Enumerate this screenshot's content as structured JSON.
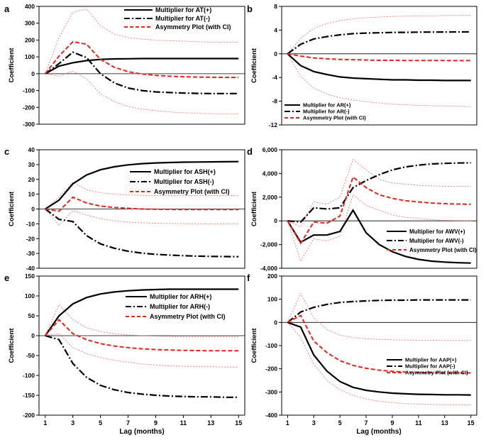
{
  "figure": {
    "xlabel": "Lag (months)"
  },
  "chart_data": [
    {
      "panel_label": "a",
      "type": "line",
      "ylabel": "Coefficient",
      "x": [
        1,
        2,
        3,
        4,
        5,
        6,
        7,
        8,
        9,
        10,
        11,
        12,
        13,
        14,
        15
      ],
      "ylim": [
        -300,
        400
      ],
      "yticks": [
        -300,
        -200,
        -100,
        0,
        100,
        200,
        300,
        400
      ],
      "ytick_labels": [
        "-300",
        "-200",
        "-100",
        "0",
        "100",
        "200",
        "300",
        "400"
      ],
      "xticks": [],
      "xtick_labels": [],
      "legend_position": "top-right",
      "series": [
        {
          "name": "Multiplier for AT(+)",
          "style": "solid",
          "values": [
            0,
            45,
            65,
            78,
            85,
            88,
            89,
            90,
            90,
            90,
            90,
            90,
            90,
            90,
            90
          ]
        },
        {
          "name": "Multiplier for AT(-)",
          "style": "dashdot",
          "values": [
            0,
            60,
            128,
            95,
            0,
            -55,
            -85,
            -100,
            -108,
            -112,
            -115,
            -117,
            -118,
            -118,
            -118
          ]
        },
        {
          "name": "Asymmetry Plot (with CI)",
          "style": "dashed-red",
          "values": [
            0,
            105,
            190,
            175,
            85,
            38,
            12,
            -2,
            -10,
            -15,
            -18,
            -20,
            -21,
            -22,
            -22
          ]
        },
        {
          "name": "CI upper",
          "style": "ci",
          "values": [
            0,
            215,
            365,
            385,
            285,
            235,
            215,
            205,
            200,
            196,
            193,
            190,
            188,
            187,
            186
          ]
        },
        {
          "name": "CI lower",
          "style": "ci",
          "values": [
            0,
            -15,
            15,
            -30,
            -120,
            -165,
            -195,
            -210,
            -220,
            -227,
            -232,
            -235,
            -237,
            -238,
            -238
          ]
        }
      ]
    },
    {
      "panel_label": "b",
      "type": "line",
      "ylabel": "Coefficient",
      "x": [
        1,
        2,
        3,
        4,
        5,
        6,
        7,
        8,
        9,
        10,
        11,
        12,
        13,
        14,
        15
      ],
      "ylim": [
        -12,
        8
      ],
      "yticks": [
        -12,
        -8,
        -4,
        0,
        4,
        8
      ],
      "ytick_labels": [
        "-12",
        "-8",
        "-4",
        "0",
        "4",
        "8"
      ],
      "xticks": [],
      "xtick_labels": [],
      "legend_position": "bottom-left",
      "series": [
        {
          "name": "Multiplier for AR(+)",
          "style": "solid",
          "values": [
            0,
            -2,
            -3,
            -3.5,
            -3.9,
            -4.1,
            -4.2,
            -4.3,
            -4.4,
            -4.4,
            -4.45,
            -4.45,
            -4.5,
            -4.5,
            -4.5
          ]
        },
        {
          "name": "Multiplier for AR(-)",
          "style": "dashdot",
          "values": [
            0,
            1.6,
            2.5,
            2.9,
            3.2,
            3.4,
            3.5,
            3.55,
            3.6,
            3.62,
            3.65,
            3.67,
            3.68,
            3.69,
            3.7
          ]
        },
        {
          "name": "Asymmetry Plot (with CI)",
          "style": "dashed-red",
          "values": [
            0,
            -0.4,
            -0.7,
            -0.85,
            -0.95,
            -1.0,
            -1.05,
            -1.1,
            -1.1,
            -1.12,
            -1.12,
            -1.13,
            -1.14,
            -1.15,
            -1.15
          ]
        },
        {
          "name": "CI upper",
          "style": "ci",
          "values": [
            0,
            2.6,
            4.3,
            5.1,
            5.6,
            5.9,
            6.1,
            6.2,
            6.3,
            6.35,
            6.4,
            6.4,
            6.45,
            6.45,
            6.5
          ]
        },
        {
          "name": "CI lower",
          "style": "ci",
          "values": [
            0,
            -3.8,
            -5.8,
            -6.8,
            -7.4,
            -7.8,
            -8.1,
            -8.3,
            -8.5,
            -8.6,
            -8.7,
            -8.75,
            -8.8,
            -8.85,
            -8.9
          ]
        }
      ]
    },
    {
      "panel_label": "c",
      "type": "line",
      "ylabel": "Coefficient",
      "x": [
        1,
        2,
        3,
        4,
        5,
        6,
        7,
        8,
        9,
        10,
        11,
        12,
        13,
        14,
        15
      ],
      "ylim": [
        -40,
        40
      ],
      "yticks": [
        -40,
        -30,
        -20,
        -10,
        0,
        10,
        20,
        30,
        40
      ],
      "ytick_labels": [
        "-40",
        "-30",
        "-20",
        "-10",
        "0",
        "10",
        "20",
        "30",
        "40"
      ],
      "xticks": [],
      "xtick_labels": [],
      "legend_position": "right",
      "series": [
        {
          "name": "Multiplier for ASH(+)",
          "style": "solid",
          "values": [
            0,
            6,
            17,
            23,
            26.5,
            28.5,
            29.8,
            30.6,
            31.1,
            31.4,
            31.6,
            31.7,
            31.8,
            31.9,
            32
          ]
        },
        {
          "name": "Multiplier for ASH(-)",
          "style": "dashdot",
          "values": [
            0,
            -7,
            -8.5,
            -18,
            -23.5,
            -26.5,
            -28.5,
            -29.8,
            -30.6,
            -31.1,
            -31.5,
            -31.8,
            -32,
            -32.1,
            -32.2
          ]
        },
        {
          "name": "Asymmetry Plot (with CI)",
          "style": "dashed-red",
          "values": [
            0,
            -1.5,
            8,
            4,
            2,
            1,
            0.5,
            0,
            -0.2,
            -0.3,
            -0.4,
            -0.4,
            -0.4,
            -0.4,
            -0.4
          ]
        },
        {
          "name": "CI upper",
          "style": "ci",
          "values": [
            0,
            8,
            18,
            13,
            11,
            10,
            9.5,
            9.2,
            9,
            9,
            9,
            9,
            9,
            9,
            9
          ]
        },
        {
          "name": "CI lower",
          "style": "ci",
          "values": [
            0,
            -11,
            -1,
            -4,
            -6.5,
            -8,
            -8.8,
            -9.3,
            -9.6,
            -9.8,
            -9.9,
            -10,
            -10,
            -10,
            -10
          ]
        }
      ]
    },
    {
      "panel_label": "d",
      "type": "line",
      "ylabel": "Coefficient",
      "x": [
        1,
        2,
        3,
        4,
        5,
        6,
        7,
        8,
        9,
        10,
        11,
        12,
        13,
        14,
        15
      ],
      "ylim": [
        -4000,
        6000
      ],
      "yticks": [
        -4000,
        -2000,
        0,
        2000,
        4000,
        6000
      ],
      "ytick_labels": [
        "-4,000",
        "-2,000",
        "0",
        "2,000",
        "4,000",
        "6,000"
      ],
      "xticks": [],
      "xtick_labels": [],
      "legend_position": "bottom-right",
      "series": [
        {
          "name": "Multiplier for AWV(+)",
          "style": "solid",
          "values": [
            0,
            -1800,
            -1200,
            -1200,
            -900,
            900,
            -1000,
            -2000,
            -2600,
            -3000,
            -3250,
            -3400,
            -3480,
            -3530,
            -3560
          ]
        },
        {
          "name": "Multiplier for AWV(-)",
          "style": "dashdot",
          "values": [
            0,
            -100,
            1100,
            1000,
            1100,
            2800,
            3400,
            3900,
            4300,
            4550,
            4700,
            4800,
            4850,
            4880,
            4900
          ]
        },
        {
          "name": "Asymmetry Plot (with CI)",
          "style": "dashed-red",
          "values": [
            0,
            -1900,
            -100,
            -200,
            400,
            3700,
            2800,
            2200,
            1900,
            1700,
            1600,
            1500,
            1450,
            1420,
            1400
          ]
        },
        {
          "name": "CI upper",
          "style": "ci",
          "values": [
            0,
            -500,
            1600,
            1400,
            2000,
            5200,
            4300,
            3500,
            3200,
            3100,
            3000,
            2950,
            2920,
            2900,
            2900
          ]
        },
        {
          "name": "CI lower",
          "style": "ci",
          "values": [
            0,
            -3400,
            -1500,
            -1700,
            -1300,
            2200,
            1300,
            900,
            500,
            300,
            200,
            100,
            50,
            20,
            0
          ]
        }
      ]
    },
    {
      "panel_label": "e",
      "type": "line",
      "ylabel": "Coefficient",
      "x": [
        1,
        2,
        3,
        4,
        5,
        6,
        7,
        8,
        9,
        10,
        11,
        12,
        13,
        14,
        15
      ],
      "ylim": [
        -200,
        150
      ],
      "yticks": [
        -200,
        -150,
        -100,
        -50,
        0,
        50,
        100,
        150
      ],
      "ytick_labels": [
        "-200",
        "-150",
        "-100",
        "-50",
        "0",
        "50",
        "100",
        "150"
      ],
      "xticks": [
        1,
        3,
        5,
        7,
        9,
        11,
        13,
        15
      ],
      "xtick_labels": [
        "1",
        "3",
        "5",
        "7",
        "9",
        "11",
        "13",
        "15"
      ],
      "legend_position": "top-right",
      "series": [
        {
          "name": "Multiplier for ARH(+)",
          "style": "solid",
          "values": [
            0,
            50,
            80,
            96,
            105,
            110,
            113,
            115,
            116,
            117,
            117,
            117,
            117,
            117,
            117
          ]
        },
        {
          "name": "Multiplier for ARH(-)",
          "style": "dashdot",
          "values": [
            0,
            -10,
            -70,
            -105,
            -125,
            -136,
            -143,
            -147,
            -150,
            -152,
            -153,
            -154,
            -154,
            -155,
            -155
          ]
        },
        {
          "name": "Asymmetry Plot (with CI)",
          "style": "dashed-red",
          "values": [
            0,
            40,
            5,
            -10,
            -20,
            -26,
            -30,
            -33,
            -35,
            -36,
            -37,
            -37.5,
            -38,
            -38,
            -38
          ]
        },
        {
          "name": "CI upper",
          "style": "ci",
          "values": [
            0,
            78,
            40,
            20,
            10,
            5,
            2,
            0,
            -1,
            -2,
            -3,
            -3,
            -3,
            -3,
            -3
          ]
        },
        {
          "name": "CI lower",
          "style": "ci",
          "values": [
            0,
            5,
            -30,
            -45,
            -55,
            -62,
            -67,
            -71,
            -74,
            -76,
            -77,
            -78,
            -78,
            -79,
            -79
          ]
        }
      ]
    },
    {
      "panel_label": "f",
      "type": "line",
      "ylabel": "Coefficient",
      "x": [
        1,
        2,
        3,
        4,
        5,
        6,
        7,
        8,
        9,
        10,
        11,
        12,
        13,
        14,
        15
      ],
      "ylim": [
        -400,
        200
      ],
      "yticks": [
        -400,
        -300,
        -200,
        -100,
        0,
        100,
        200
      ],
      "ytick_labels": [
        "-400",
        "-300",
        "-200",
        "-100",
        "0",
        "100",
        "200"
      ],
      "xticks": [
        1,
        3,
        5,
        7,
        9,
        11,
        13,
        15
      ],
      "xtick_labels": [
        "1",
        "3",
        "5",
        "7",
        "9",
        "11",
        "13",
        "15"
      ],
      "legend_position": "bottom-right",
      "series": [
        {
          "name": "Multiplier for AAP(+)",
          "style": "solid",
          "values": [
            0,
            -20,
            -140,
            -210,
            -255,
            -280,
            -293,
            -300,
            -305,
            -308,
            -310,
            -311,
            -312,
            -312,
            -313
          ]
        },
        {
          "name": "Multiplier for AAP(-)",
          "style": "dashdot",
          "values": [
            0,
            45,
            65,
            78,
            86,
            90,
            93,
            95,
            96,
            96,
            97,
            97,
            97,
            97,
            97
          ]
        },
        {
          "name": "Asymmetry Plot (with CI)",
          "style": "dashed-red",
          "values": [
            0,
            30,
            -80,
            -130,
            -165,
            -185,
            -198,
            -206,
            -211,
            -214,
            -216,
            -217,
            -218,
            -218,
            -218
          ]
        },
        {
          "name": "CI upper",
          "style": "ci",
          "values": [
            0,
            125,
            20,
            -30,
            -55,
            -65,
            -70,
            -73,
            -75,
            -76,
            -77,
            -77,
            -78,
            -78,
            -78
          ]
        },
        {
          "name": "CI lower",
          "style": "ci",
          "values": [
            0,
            -65,
            -180,
            -250,
            -290,
            -315,
            -330,
            -340,
            -346,
            -350,
            -352,
            -354,
            -355,
            -355,
            -356
          ]
        }
      ]
    }
  ]
}
